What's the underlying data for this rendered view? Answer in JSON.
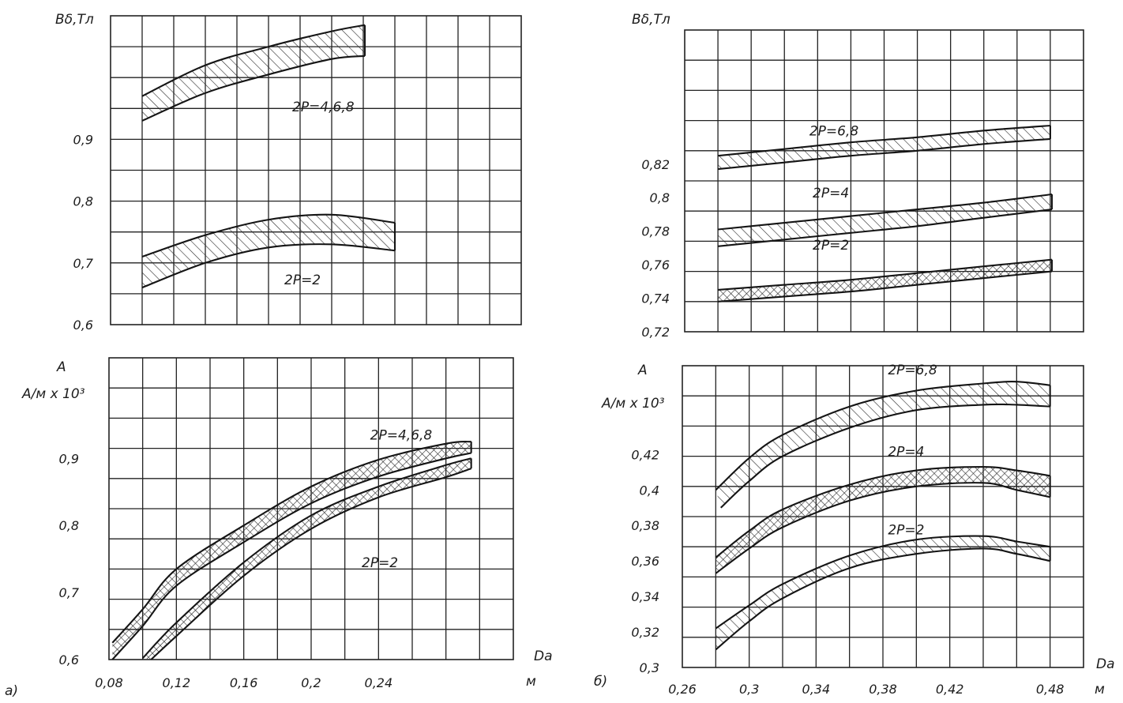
{
  "panel_labels": {
    "a": "a)",
    "b": "б)"
  },
  "chart_data": [
    {
      "id": "a_top",
      "type": "area",
      "ylabel": "Вδ,Тл",
      "ylabel2": "",
      "xlabel": "",
      "xunit": "",
      "y_ticks": [
        0.9,
        0.8,
        0.7,
        0.6
      ],
      "y_tick_labels": [
        "0,9",
        "0,8",
        "0,7",
        "0,6"
      ],
      "x_ticks": [],
      "x_tick_labels": [],
      "xlim": [
        0.06,
        0.32
      ],
      "ylim": [
        0.6,
        1.1
      ],
      "grid": true,
      "series": [
        {
          "name": "2P=4,6,8",
          "pattern": "hatch",
          "label_at": [
            0.175,
            0.945
          ],
          "upper": [
            [
              0.08,
              0.97
            ],
            [
              0.12,
              1.02
            ],
            [
              0.16,
              1.05
            ],
            [
              0.2,
              1.075
            ],
            [
              0.221,
              1.085
            ]
          ],
          "lower": [
            [
              0.08,
              0.93
            ],
            [
              0.12,
              0.975
            ],
            [
              0.16,
              1.005
            ],
            [
              0.2,
              1.03
            ],
            [
              0.221,
              1.035
            ]
          ]
        },
        {
          "name": "2P=2",
          "pattern": "hatch",
          "label_at": [
            0.17,
            0.665
          ],
          "upper": [
            [
              0.08,
              0.71
            ],
            [
              0.12,
              0.745
            ],
            [
              0.16,
              0.77
            ],
            [
              0.2,
              0.778
            ],
            [
              0.24,
              0.765
            ]
          ],
          "lower": [
            [
              0.08,
              0.66
            ],
            [
              0.12,
              0.7
            ],
            [
              0.16,
              0.725
            ],
            [
              0.2,
              0.73
            ],
            [
              0.24,
              0.72
            ]
          ]
        }
      ]
    },
    {
      "id": "a_bottom",
      "type": "area",
      "ylabel": "A",
      "ylabel2": "А/м х 10³",
      "xlabel": "Da",
      "xunit": "м",
      "y_ticks": [
        0.9,
        0.8,
        0.7,
        0.6
      ],
      "y_tick_labels": [
        "0,9",
        "0,8",
        "0,7",
        "0,6"
      ],
      "x_ticks": [
        0.08,
        0.12,
        0.16,
        0.2,
        0.24
      ],
      "x_tick_labels": [
        "0,08",
        "0,12",
        "0,16",
        "0,2",
        "0,24"
      ],
      "xlim": [
        0.08,
        0.32
      ],
      "ylim": [
        0.6,
        1.05
      ],
      "grid": true,
      "series": [
        {
          "name": "2P=4,6,8",
          "pattern": "crosshatch",
          "label_at": [
            0.235,
            0.928
          ],
          "upper": [
            [
              0.082,
              0.625
            ],
            [
              0.1,
              0.675
            ],
            [
              0.12,
              0.735
            ],
            [
              0.16,
              0.8
            ],
            [
              0.2,
              0.858
            ],
            [
              0.24,
              0.898
            ],
            [
              0.28,
              0.922
            ],
            [
              0.295,
              0.925
            ]
          ],
          "lower": [
            [
              0.082,
              0.6
            ],
            [
              0.1,
              0.65
            ],
            [
              0.12,
              0.71
            ],
            [
              0.16,
              0.775
            ],
            [
              0.2,
              0.833
            ],
            [
              0.24,
              0.873
            ],
            [
              0.28,
              0.9
            ],
            [
              0.295,
              0.908
            ]
          ]
        },
        {
          "name": "2P=2",
          "pattern": "crosshatch",
          "label_at": [
            0.23,
            0.738
          ],
          "upper": [
            [
              0.1,
              0.602
            ],
            [
              0.12,
              0.655
            ],
            [
              0.16,
              0.745
            ],
            [
              0.2,
              0.815
            ],
            [
              0.24,
              0.858
            ],
            [
              0.28,
              0.89
            ],
            [
              0.295,
              0.9
            ]
          ],
          "lower": [
            [
              0.105,
              0.6
            ],
            [
              0.12,
              0.635
            ],
            [
              0.16,
              0.725
            ],
            [
              0.2,
              0.795
            ],
            [
              0.24,
              0.842
            ],
            [
              0.28,
              0.872
            ],
            [
              0.295,
              0.885
            ]
          ]
        }
      ]
    },
    {
      "id": "b_top",
      "type": "area",
      "ylabel": "Вδ,Тл",
      "ylabel2": "",
      "xlabel": "",
      "xunit": "",
      "y_ticks": [
        0.82,
        0.8,
        0.78,
        0.76,
        0.74,
        0.72
      ],
      "y_tick_labels": [
        "0,82",
        "0,8",
        "0,78",
        "0,76",
        "0,74",
        "0,72"
      ],
      "x_ticks": [],
      "x_tick_labels": [],
      "xlim": [
        0.26,
        0.5
      ],
      "ylim": [
        0.72,
        0.9
      ],
      "grid": true,
      "series": [
        {
          "name": "2P=6,8",
          "pattern": "hatch",
          "label_at": [
            0.335,
            0.837
          ],
          "upper": [
            [
              0.28,
              0.825
            ],
            [
              0.32,
              0.829
            ],
            [
              0.36,
              0.833
            ],
            [
              0.4,
              0.836
            ],
            [
              0.44,
              0.84
            ],
            [
              0.48,
              0.843
            ]
          ],
          "lower": [
            [
              0.28,
              0.817
            ],
            [
              0.32,
              0.821
            ],
            [
              0.36,
              0.825
            ],
            [
              0.4,
              0.828
            ],
            [
              0.44,
              0.832
            ],
            [
              0.48,
              0.835
            ]
          ]
        },
        {
          "name": "2P=4",
          "pattern": "hatch",
          "label_at": [
            0.337,
            0.8
          ],
          "upper": [
            [
              0.28,
              0.781
            ],
            [
              0.32,
              0.785
            ],
            [
              0.36,
              0.789
            ],
            [
              0.4,
              0.793
            ],
            [
              0.44,
              0.797
            ],
            [
              0.481,
              0.802
            ]
          ],
          "lower": [
            [
              0.28,
              0.771
            ],
            [
              0.32,
              0.775
            ],
            [
              0.36,
              0.779
            ],
            [
              0.4,
              0.783
            ],
            [
              0.44,
              0.788
            ],
            [
              0.481,
              0.793
            ]
          ]
        },
        {
          "name": "2P=2",
          "pattern": "crosshatch",
          "label_at": [
            0.337,
            0.769
          ],
          "upper": [
            [
              0.28,
              0.745
            ],
            [
              0.32,
              0.748
            ],
            [
              0.36,
              0.751
            ],
            [
              0.4,
              0.755
            ],
            [
              0.44,
              0.759
            ],
            [
              0.481,
              0.763
            ]
          ],
          "lower": [
            [
              0.28,
              0.738
            ],
            [
              0.32,
              0.741
            ],
            [
              0.36,
              0.744
            ],
            [
              0.4,
              0.748
            ],
            [
              0.44,
              0.752
            ],
            [
              0.481,
              0.756
            ]
          ]
        }
      ]
    },
    {
      "id": "b_bottom",
      "type": "area",
      "ylabel": "A",
      "ylabel2": "А/м х 10³",
      "xlabel": "Da",
      "xunit": "м",
      "y_ticks": [
        0.42,
        0.4,
        0.38,
        0.36,
        0.34,
        0.32,
        0.3
      ],
      "y_tick_labels": [
        "0,42",
        "0,4",
        "0,38",
        "0,36",
        "0,34",
        "0,32",
        "0,3"
      ],
      "x_ticks": [
        0.26,
        0.3,
        0.34,
        0.38,
        0.42,
        0.48
      ],
      "x_tick_labels": [
        "0,26",
        "0,3",
        "0,34",
        "0,38",
        "0,42",
        "0,48"
      ],
      "xlim": [
        0.26,
        0.5
      ],
      "ylim": [
        0.3,
        0.47
      ],
      "grid": true,
      "series": [
        {
          "name": "2P=6,8",
          "pattern": "hatch",
          "label_at": [
            0.383,
            0.465
          ],
          "upper": [
            [
              0.28,
              0.4
            ],
            [
              0.3,
              0.418
            ],
            [
              0.32,
              0.431
            ],
            [
              0.36,
              0.447
            ],
            [
              0.4,
              0.456
            ],
            [
              0.44,
              0.46
            ],
            [
              0.46,
              0.461
            ],
            [
              0.48,
              0.459
            ]
          ],
          "lower": [
            [
              0.283,
              0.39
            ],
            [
              0.3,
              0.405
            ],
            [
              0.32,
              0.419
            ],
            [
              0.36,
              0.435
            ],
            [
              0.4,
              0.445
            ],
            [
              0.44,
              0.448
            ],
            [
              0.46,
              0.448
            ],
            [
              0.48,
              0.447
            ]
          ]
        },
        {
          "name": "2P=4",
          "pattern": "crosshatch",
          "label_at": [
            0.383,
            0.419
          ],
          "upper": [
            [
              0.28,
              0.362
            ],
            [
              0.3,
              0.377
            ],
            [
              0.32,
              0.389
            ],
            [
              0.36,
              0.403
            ],
            [
              0.4,
              0.411
            ],
            [
              0.44,
              0.413
            ],
            [
              0.46,
              0.411
            ],
            [
              0.48,
              0.408
            ]
          ],
          "lower": [
            [
              0.28,
              0.353
            ],
            [
              0.3,
              0.367
            ],
            [
              0.32,
              0.379
            ],
            [
              0.36,
              0.394
            ],
            [
              0.4,
              0.402
            ],
            [
              0.44,
              0.404
            ],
            [
              0.46,
              0.4
            ],
            [
              0.48,
              0.396
            ]
          ]
        },
        {
          "name": "2P=2",
          "pattern": "hatch",
          "label_at": [
            0.383,
            0.375
          ],
          "upper": [
            [
              0.28,
              0.322
            ],
            [
              0.3,
              0.335
            ],
            [
              0.32,
              0.347
            ],
            [
              0.36,
              0.363
            ],
            [
              0.4,
              0.372
            ],
            [
              0.44,
              0.374
            ],
            [
              0.46,
              0.371
            ],
            [
              0.48,
              0.368
            ]
          ],
          "lower": [
            [
              0.28,
              0.31
            ],
            [
              0.3,
              0.326
            ],
            [
              0.32,
              0.339
            ],
            [
              0.36,
              0.356
            ],
            [
              0.4,
              0.364
            ],
            [
              0.44,
              0.367
            ],
            [
              0.46,
              0.364
            ],
            [
              0.48,
              0.36
            ]
          ]
        }
      ]
    }
  ]
}
